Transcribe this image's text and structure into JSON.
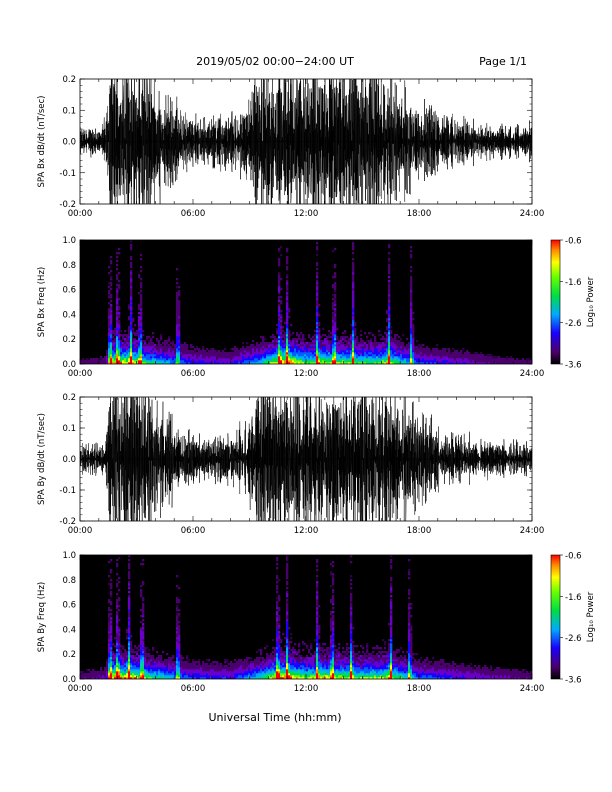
{
  "header": {
    "title": "2019/05/02  00:00−24:00 UT",
    "page": "Page 1/1"
  },
  "footer": {
    "xlabel": "Universal Time (hh:mm)"
  },
  "chart_data": [
    {
      "id": "bx-waveform",
      "type": "line",
      "ylabel": "SPA Bx dB/dt (nT/sec)",
      "xlabel": "",
      "x_ticks": [
        "00:00",
        "06:00",
        "12:00",
        "18:00",
        "24:00"
      ],
      "xlim_hours": [
        0,
        24
      ],
      "ylim": [
        -0.2,
        0.2
      ],
      "y_ticks": [
        "-0.2",
        "-0.1",
        "0.0",
        "0.1",
        "0.2"
      ],
      "amplitude_envelope": {
        "hours": [
          0,
          1,
          1.4,
          1.6,
          2.5,
          3.5,
          4.5,
          5.5,
          6.5,
          7.5,
          8.5,
          9.2,
          9.5,
          10,
          11,
          12,
          13,
          14,
          15,
          16,
          16.5,
          17,
          18,
          19,
          20,
          21,
          22,
          23,
          24
        ],
        "amplitude": [
          0.04,
          0.05,
          0.07,
          0.25,
          0.25,
          0.25,
          0.15,
          0.09,
          0.07,
          0.08,
          0.1,
          0.15,
          0.25,
          0.25,
          0.25,
          0.25,
          0.25,
          0.25,
          0.25,
          0.25,
          0.25,
          0.16,
          0.13,
          0.09,
          0.07,
          0.06,
          0.05,
          0.05,
          0.05
        ]
      }
    },
    {
      "id": "bx-spectrogram",
      "type": "heatmap",
      "ylabel": "SPA Bx Freq (Hz)",
      "x_ticks": [
        "00:00",
        "06:00",
        "12:00",
        "18:00",
        "24:00"
      ],
      "xlim_hours": [
        0,
        24
      ],
      "ylim": [
        0,
        1.0
      ],
      "y_ticks": [
        "0.0",
        "0.2",
        "0.4",
        "0.6",
        "0.8",
        "1.0"
      ],
      "colorbar": {
        "label": "Log₁₀ Power",
        "range": [
          -3.6,
          -0.6
        ],
        "ticks": [
          "-0.6",
          "-1.6",
          "-2.6",
          "-3.6"
        ]
      },
      "activity": {
        "hours": [
          0,
          1.4,
          1.6,
          2,
          3,
          3.5,
          4.5,
          6,
          8,
          9.5,
          10.5,
          11,
          12,
          13,
          14,
          15,
          16.5,
          17,
          18,
          20,
          22,
          24
        ],
        "level": [
          0.15,
          0.2,
          0.85,
          0.95,
          0.85,
          0.7,
          0.55,
          0.35,
          0.3,
          0.55,
          0.9,
          1.0,
          0.75,
          0.85,
          0.8,
          0.7,
          0.8,
          0.65,
          0.4,
          0.3,
          0.2,
          0.15
        ]
      },
      "spikes_hours": [
        1.6,
        2.0,
        2.7,
        3.2,
        5.2,
        10.6,
        11.0,
        12.6,
        13.5,
        14.5,
        16.4,
        17.6
      ]
    },
    {
      "id": "by-waveform",
      "type": "line",
      "ylabel": "SPA By dB/dt (nT/sec)",
      "xlabel": "",
      "x_ticks": [
        "00:00",
        "06:00",
        "12:00",
        "18:00",
        "24:00"
      ],
      "xlim_hours": [
        0,
        24
      ],
      "ylim": [
        -0.2,
        0.2
      ],
      "y_ticks": [
        "-0.2",
        "-0.1",
        "0.0",
        "0.1",
        "0.2"
      ],
      "amplitude_envelope": {
        "hours": [
          0,
          1,
          1.4,
          1.6,
          2.5,
          3.5,
          4.5,
          5.5,
          6.5,
          7.5,
          8.5,
          9.2,
          9.5,
          10,
          11,
          12,
          13,
          14,
          15,
          16,
          16.5,
          17,
          18,
          19,
          20,
          21,
          22,
          23,
          24
        ],
        "amplitude": [
          0.04,
          0.05,
          0.07,
          0.25,
          0.25,
          0.25,
          0.15,
          0.08,
          0.06,
          0.07,
          0.09,
          0.14,
          0.25,
          0.25,
          0.25,
          0.25,
          0.25,
          0.25,
          0.25,
          0.25,
          0.25,
          0.17,
          0.14,
          0.1,
          0.07,
          0.06,
          0.05,
          0.05,
          0.05
        ]
      }
    },
    {
      "id": "by-spectrogram",
      "type": "heatmap",
      "ylabel": "SPA By Freq (Hz)",
      "x_ticks": [
        "00:00",
        "06:00",
        "12:00",
        "18:00",
        "24:00"
      ],
      "xlim_hours": [
        0,
        24
      ],
      "ylim": [
        0,
        1.0
      ],
      "y_ticks": [
        "0.0",
        "0.2",
        "0.4",
        "0.6",
        "0.8",
        "1.0"
      ],
      "colorbar": {
        "label": "Log₁₀ Power",
        "range": [
          -3.6,
          -0.6
        ],
        "ticks": [
          "-0.6",
          "-1.6",
          "-2.6",
          "-3.6"
        ]
      },
      "activity": {
        "hours": [
          0,
          1.4,
          1.6,
          2,
          3,
          3.5,
          4.5,
          6,
          8,
          9.5,
          10.5,
          11,
          12,
          13,
          14,
          15,
          16.5,
          17,
          18,
          20,
          22,
          24
        ],
        "level": [
          0.2,
          0.25,
          0.95,
          1.0,
          0.9,
          0.75,
          0.6,
          0.4,
          0.35,
          0.6,
          0.95,
          1.0,
          0.8,
          0.9,
          0.85,
          0.75,
          0.85,
          0.7,
          0.45,
          0.35,
          0.25,
          0.2
        ]
      },
      "spikes_hours": [
        1.6,
        2.0,
        2.6,
        3.3,
        5.2,
        10.5,
        11.0,
        12.6,
        13.4,
        14.4,
        16.5,
        17.5
      ]
    }
  ]
}
